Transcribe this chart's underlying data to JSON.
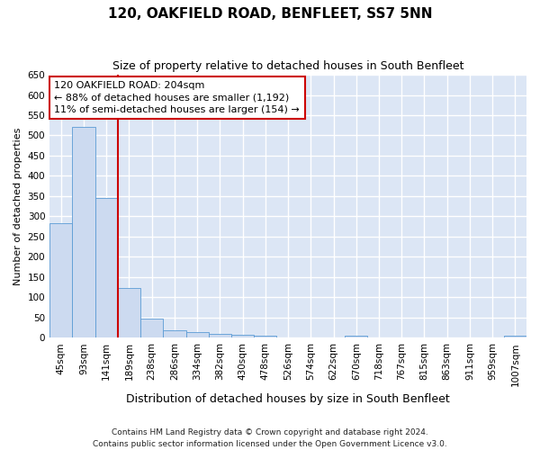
{
  "title": "120, OAKFIELD ROAD, BENFLEET, SS7 5NN",
  "subtitle": "Size of property relative to detached houses in South Benfleet",
  "xlabel": "Distribution of detached houses by size in South Benfleet",
  "ylabel": "Number of detached properties",
  "categories": [
    "45sqm",
    "93sqm",
    "141sqm",
    "189sqm",
    "238sqm",
    "286sqm",
    "334sqm",
    "382sqm",
    "430sqm",
    "478sqm",
    "526sqm",
    "574sqm",
    "622sqm",
    "670sqm",
    "718sqm",
    "767sqm",
    "815sqm",
    "863sqm",
    "911sqm",
    "959sqm",
    "1007sqm"
  ],
  "bar_values": [
    283,
    522,
    345,
    123,
    48,
    19,
    13,
    9,
    7,
    5,
    0,
    0,
    0,
    5,
    0,
    0,
    0,
    0,
    0,
    0,
    5
  ],
  "bar_color": "#ccdaf0",
  "bar_edge_color": "#5b9bd5",
  "vline_x_index": 3,
  "vline_color": "#cc0000",
  "annotation_line1": "120 OAKFIELD ROAD: 204sqm",
  "annotation_line2": "← 88% of detached houses are smaller (1,192)",
  "annotation_line3": "11% of semi-detached houses are larger (154) →",
  "annotation_box_facecolor": "#ffffff",
  "annotation_box_edgecolor": "#cc0000",
  "ylim": [
    0,
    650
  ],
  "yticks": [
    0,
    50,
    100,
    150,
    200,
    250,
    300,
    350,
    400,
    450,
    500,
    550,
    600,
    650
  ],
  "footer_line1": "Contains HM Land Registry data © Crown copyright and database right 2024.",
  "footer_line2": "Contains public sector information licensed under the Open Government Licence v3.0.",
  "fig_facecolor": "#ffffff",
  "axes_facecolor": "#dce6f5",
  "grid_color": "#ffffff"
}
